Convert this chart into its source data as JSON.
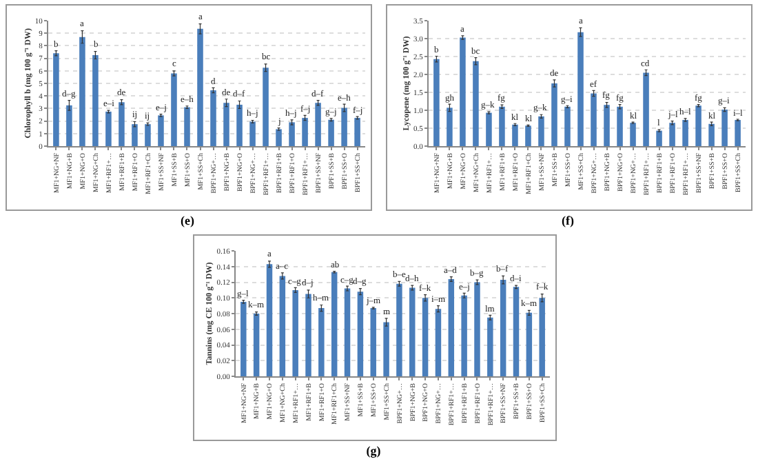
{
  "chart_data": [
    {
      "type": "bar",
      "ylabel": "Chlorophyll b (mg 100 g⁻¹ DW)",
      "annotations": [
        "(e)"
      ],
      "grid": "y",
      "categories": [
        "MF1+NG+NF",
        "MF1+NG+B",
        "MF1+NG+O",
        "MF1+NG+Ch",
        "MF1+RF1+…",
        "MF1+RF1+B",
        "MF1+RF1+O",
        "MF1+RF1+Ch",
        "MF1+SS+NF",
        "MF1+SS+B",
        "MF1+SS+O",
        "MF1+SS+Ch",
        "BPF1+NG+…",
        "BPF1+NG+B",
        "BPF1+NG+O",
        "BPF1+NG+…",
        "BPF1+RF1+…",
        "BPF1+RF1+B",
        "BPF1+RF1+O",
        "BPF1+RF1+…",
        "BPF1+SS+NF",
        "BPF1+SS+B",
        "BPF1+SS+O",
        "BPF1+SS+Ch"
      ],
      "values": [
        7.4,
        3.25,
        8.7,
        7.25,
        2.75,
        3.5,
        1.75,
        1.75,
        2.45,
        5.8,
        3.1,
        9.35,
        4.45,
        3.45,
        3.3,
        1.95,
        6.25,
        1.35,
        1.9,
        2.25,
        3.45,
        2.1,
        3.05,
        2.25
      ],
      "errors": [
        0.2,
        0.4,
        0.5,
        0.3,
        0.1,
        0.2,
        0.2,
        0.1,
        0.1,
        0.2,
        0.1,
        0.4,
        0.2,
        0.3,
        0.3,
        0.1,
        0.3,
        0.1,
        0.2,
        0.2,
        0.2,
        0.1,
        0.3,
        0.1
      ],
      "value_labels": [
        "b",
        "d–g",
        "a",
        "b",
        "e–i",
        "de",
        "ij",
        "ij",
        "e–j",
        "c",
        "e–h",
        "a",
        "d",
        "de",
        "d–f",
        "h–j",
        "bc",
        "j",
        "h–j",
        "f–j",
        "d–f",
        "g–j",
        "e–h",
        "f–j"
      ],
      "color": "#4a7ebb",
      "ylim": [
        0,
        10
      ],
      "yticks": [
        0,
        1,
        2,
        3,
        4,
        5,
        6,
        7,
        8,
        9,
        10
      ]
    },
    {
      "type": "bar",
      "ylabel": "Lycopene (mg 100 g⁻¹ DW)",
      "annotations": [
        "(f)"
      ],
      "grid": "y",
      "categories": [
        "MF1+NG+NF",
        "MF1+NG+B",
        "MF1+NG+O",
        "MF1+NG+Ch",
        "MF1+RF1+…",
        "MF1+RF1+B",
        "MF1+RF1+O",
        "MF1+RF1+Ch",
        "MF1+SS+NF",
        "MF1+SS+B",
        "MF1+SS+O",
        "MF1+SS+Ch",
        "BPF1+NG+…",
        "BPF1+NG+B",
        "BPF1+NG+O",
        "BPF1+NG+…",
        "BPF1+RF1+…",
        "BPF1+RF1+B",
        "BPF1+RF1+O",
        "BPF1+RF1+…",
        "BPF1+SS+NF",
        "BPF1+SS+B",
        "BPF1+SS+O",
        "BPF1+SS+Ch"
      ],
      "values": [
        2.43,
        1.07,
        3.03,
        2.37,
        0.93,
        1.1,
        0.6,
        0.57,
        0.83,
        1.75,
        1.1,
        3.18,
        1.47,
        1.15,
        1.1,
        0.65,
        2.05,
        0.43,
        0.65,
        0.73,
        1.13,
        0.62,
        1.02,
        0.73
      ],
      "errors": [
        0.08,
        0.1,
        0.05,
        0.1,
        0.03,
        0.05,
        0.03,
        0.02,
        0.05,
        0.1,
        0.03,
        0.12,
        0.08,
        0.07,
        0.06,
        0.02,
        0.08,
        0.03,
        0.05,
        0.04,
        0.03,
        0.05,
        0.05,
        0.02
      ],
      "value_labels": [
        "b",
        "gh",
        "a",
        "bc",
        "g–k",
        "fg",
        "kl",
        "kl",
        "g–k",
        "de",
        "g–i",
        "a",
        "ef",
        "fg",
        "fg",
        "kl",
        "cd",
        "l",
        "j–l",
        "h–l",
        "fg",
        "kl",
        "g–i",
        "i–l"
      ],
      "color": "#4a7ebb",
      "ylim": [
        0,
        3.5
      ],
      "yticks": [
        {
          "value": 0,
          "label": "0.0"
        },
        {
          "value": 0.5,
          "label": "0.5"
        },
        {
          "value": 1,
          "label": "1.0"
        },
        {
          "value": 1.5,
          "label": "1.5"
        },
        {
          "value": 2,
          "label": "2.0"
        },
        {
          "value": 2.5,
          "label": "2.5"
        },
        {
          "value": 3,
          "label": "3.0"
        },
        {
          "value": 3.5,
          "label": "3.5"
        }
      ]
    },
    {
      "type": "bar",
      "ylabel": "Tannins (mg CE 100 g⁻¹ DW)",
      "annotations": [
        "(g)"
      ],
      "grid": "y",
      "categories": [
        "MF1+NG+NF",
        "MF1+NG+B",
        "MF1+NG+O",
        "MF1+NG+Ch",
        "MF1+RF1+…",
        "MF1+RF1+B",
        "MF1+RF1+O",
        "MF1+RF1+Ch",
        "MF1+SS+NF",
        "MF1+SS+B",
        "MF1+SS+O",
        "MF1+SS+Ch",
        "BPF1+NG+…",
        "BPF1+NG+B",
        "BPF1+NG+O",
        "BPF1+NG+…",
        "BPF1+RF1+…",
        "BPF1+RF1+B",
        "BPF1+RF1+O",
        "BPF1+RF1+…",
        "BPF1+SS+NF",
        "BPF1+SS+B",
        "BPF1+SS+O",
        "BPF1+SS+Ch"
      ],
      "values": [
        0.095,
        0.08,
        0.143,
        0.128,
        0.11,
        0.105,
        0.087,
        0.133,
        0.112,
        0.108,
        0.087,
        0.069,
        0.118,
        0.113,
        0.1,
        0.086,
        0.124,
        0.103,
        0.12,
        0.075,
        0.123,
        0.114,
        0.081,
        0.1
      ],
      "errors": [
        0.002,
        0.002,
        0.004,
        0.004,
        0.003,
        0.005,
        0.004,
        0.001,
        0.003,
        0.004,
        0.001,
        0.005,
        0.003,
        0.003,
        0.004,
        0.004,
        0.003,
        0.003,
        0.003,
        0.003,
        0.005,
        0.002,
        0.003,
        0.005
      ],
      "value_labels": [
        "g–l",
        "k–m",
        "a",
        "a–c",
        "c–g",
        "d–j",
        "h–m",
        "ab",
        "c–g",
        "d–g",
        "j–m",
        "m",
        "b–e",
        "d–h",
        "f–k",
        "i–m",
        "a–d",
        "e–j",
        "b–g",
        "lm",
        "b–f",
        "d–i",
        "k–m",
        "f–k"
      ],
      "color": "#4a7ebb",
      "ylim": [
        0,
        0.16
      ],
      "yticks": [
        {
          "value": 0,
          "label": "0.00"
        },
        {
          "value": 0.02,
          "label": "0.02"
        },
        {
          "value": 0.04,
          "label": "0.04"
        },
        {
          "value": 0.06,
          "label": "0.06"
        },
        {
          "value": 0.08,
          "label": "0.08"
        },
        {
          "value": 0.1,
          "label": "0.10"
        },
        {
          "value": 0.12,
          "label": "0.12"
        },
        {
          "value": 0.14,
          "label": "0.14"
        },
        {
          "value": 0.16,
          "label": "0.16"
        }
      ]
    }
  ]
}
